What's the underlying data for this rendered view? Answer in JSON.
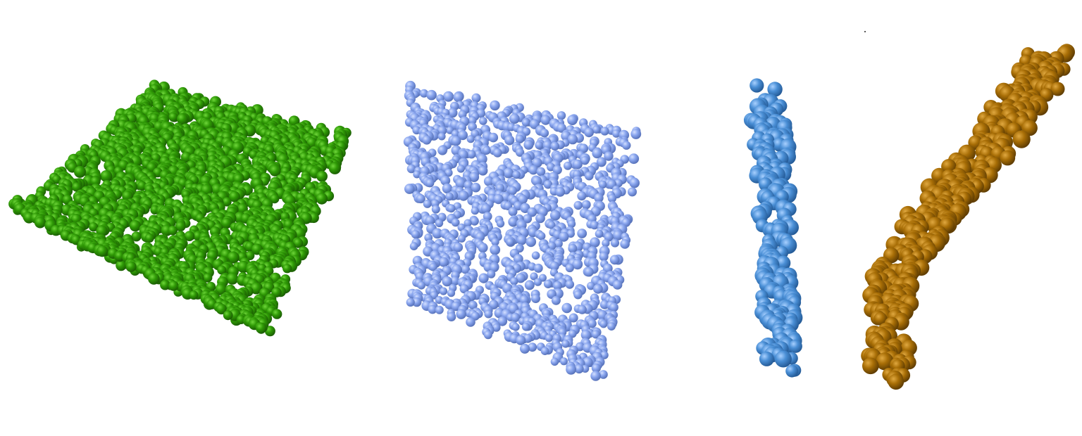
{
  "image": {
    "background": "#ffffff"
  },
  "clusters": [
    {
      "id": "green-sheet",
      "shape": "sheet",
      "color": "#2f9a06",
      "highlight": "#6fd63a",
      "shadow": "#1a5c02"
    },
    {
      "id": "lavender-sheet",
      "shape": "sheet",
      "color": "#8aa6ef",
      "highlight": "#d4e0ff",
      "shadow": "#5570b8"
    },
    {
      "id": "blue-fiber",
      "shape": "fiber",
      "color": "#4a8fd6",
      "highlight": "#a8d0ff",
      "shadow": "#245a96"
    },
    {
      "id": "brown-fiber",
      "shape": "fiber",
      "color": "#a86e06",
      "highlight": "#e0a840",
      "shadow": "#5e3c02"
    }
  ]
}
